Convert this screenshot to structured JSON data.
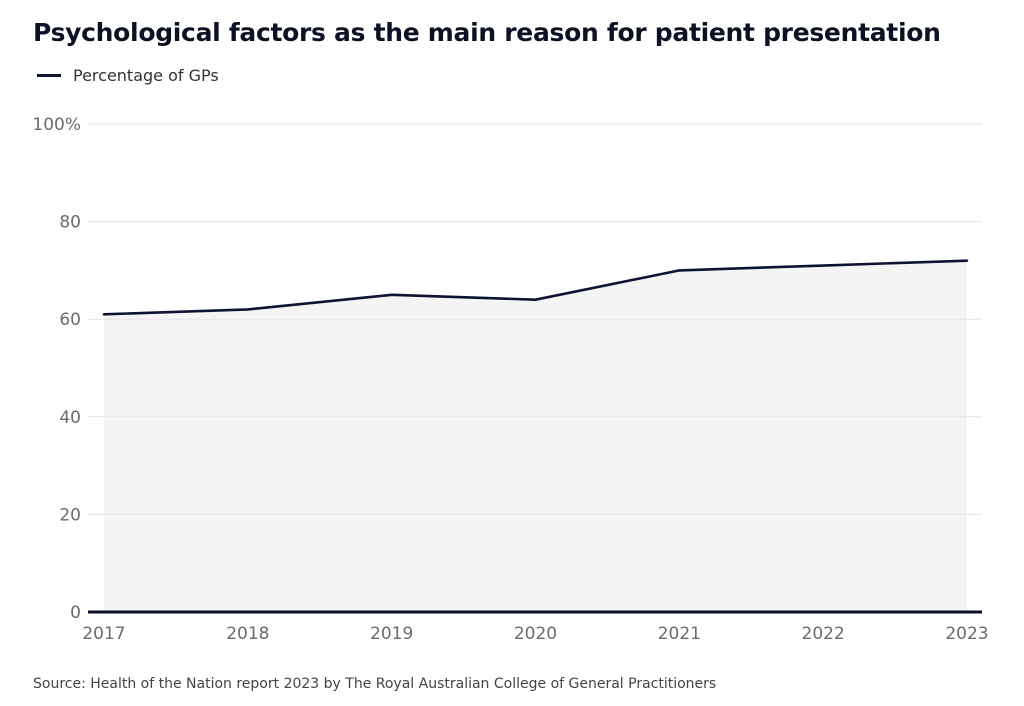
{
  "chart_data": {
    "type": "area",
    "title": "Psychological factors as the main reason for patient presentation",
    "legend": {
      "placement": "top-left",
      "entries": [
        "Percentage of GPs"
      ]
    },
    "categories": [
      "2017",
      "2018",
      "2019",
      "2020",
      "2021",
      "2022",
      "2023"
    ],
    "series": [
      {
        "name": "Percentage of GPs",
        "values": [
          61,
          62,
          65,
          64,
          70,
          71,
          72
        ]
      }
    ],
    "ylim": [
      0,
      100
    ],
    "y_ticks": [
      {
        "value": 0,
        "label": "0"
      },
      {
        "value": 20,
        "label": "20"
      },
      {
        "value": 40,
        "label": "40"
      },
      {
        "value": 60,
        "label": "60"
      },
      {
        "value": 80,
        "label": "80"
      },
      {
        "value": 100,
        "label": "100%"
      }
    ],
    "grid": true,
    "xlabel": "",
    "ylabel": ""
  },
  "colors": {
    "line": "#0d1330",
    "area": "#f4f4f4",
    "grid": "#e3e3e3",
    "axis": "#0d1126",
    "tick_label": "#6b6b6b"
  },
  "source": "Source: Health of the Nation report 2023 by The Royal Australian College of General Practitioners"
}
